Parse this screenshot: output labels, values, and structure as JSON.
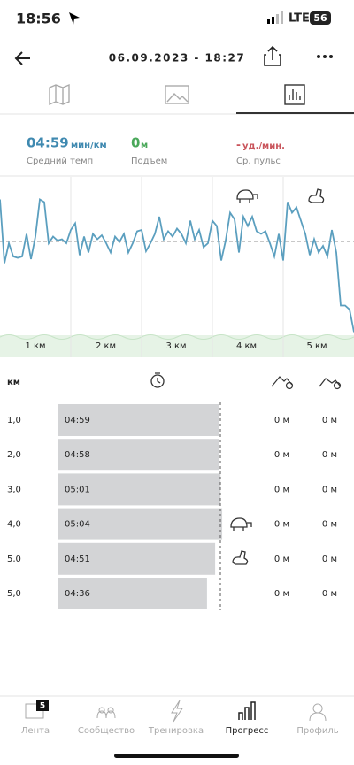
{
  "status_bar": {
    "time": "18:56",
    "network": "LTE",
    "battery": "56"
  },
  "header": {
    "title": "06.09.2023 - 18:27"
  },
  "summary": [
    {
      "value": "04:59",
      "unit": "мин/км",
      "label": "Средний темп"
    },
    {
      "value": "0",
      "unit": "м",
      "label": "Подъем"
    },
    {
      "value": "-",
      "unit": "уд./мин.",
      "label": "Ср. пульс"
    }
  ],
  "pace_chart": {
    "type": "line",
    "color": "#5b9fbf",
    "ylim": [
      250,
      370
    ],
    "values": [
      267,
      315,
      300,
      310,
      311,
      310,
      293,
      312,
      295,
      267,
      269,
      300,
      295,
      298,
      297,
      300,
      290,
      285,
      309,
      295,
      307,
      293,
      297,
      294,
      300,
      307,
      295,
      299,
      293,
      307,
      300,
      291,
      290,
      306,
      300,
      293,
      280,
      297,
      291,
      295,
      289,
      293,
      300,
      283,
      297,
      290,
      303,
      300,
      283,
      287,
      313,
      298,
      277,
      282,
      307,
      280,
      287,
      280,
      291,
      293,
      291,
      300,
      310,
      293,
      313,
      269,
      277,
      273,
      283,
      293,
      309,
      297,
      307,
      302,
      310,
      290,
      307,
      347,
      347,
      350,
      367
    ],
    "km_labels": [
      "1 км",
      "2 км",
      "3 км",
      "4 км",
      "5 км"
    ]
  },
  "table": {
    "header": "км",
    "rows": [
      {
        "km": "1,0",
        "pace": "04:59",
        "ascent": "0 м",
        "descent": "0 м"
      },
      {
        "km": "2,0",
        "pace": "04:58",
        "ascent": "0 м",
        "descent": "0 м"
      },
      {
        "km": "3,0",
        "pace": "05:01",
        "ascent": "0 м",
        "descent": "0 м"
      },
      {
        "km": "4,0",
        "pace": "05:04",
        "ascent": "0 м",
        "descent": "0 м"
      },
      {
        "km": "5,0",
        "pace": "04:51",
        "ascent": "0 м",
        "descent": "0 м"
      },
      {
        "km": "5,0",
        "pace": "04:36",
        "ascent": "0 м",
        "descent": "0 м"
      }
    ]
  },
  "nav": {
    "badge": "5",
    "items": [
      "Лента",
      "Сообщество",
      "Тренировка",
      "Прогресс",
      "Профиль"
    ]
  }
}
